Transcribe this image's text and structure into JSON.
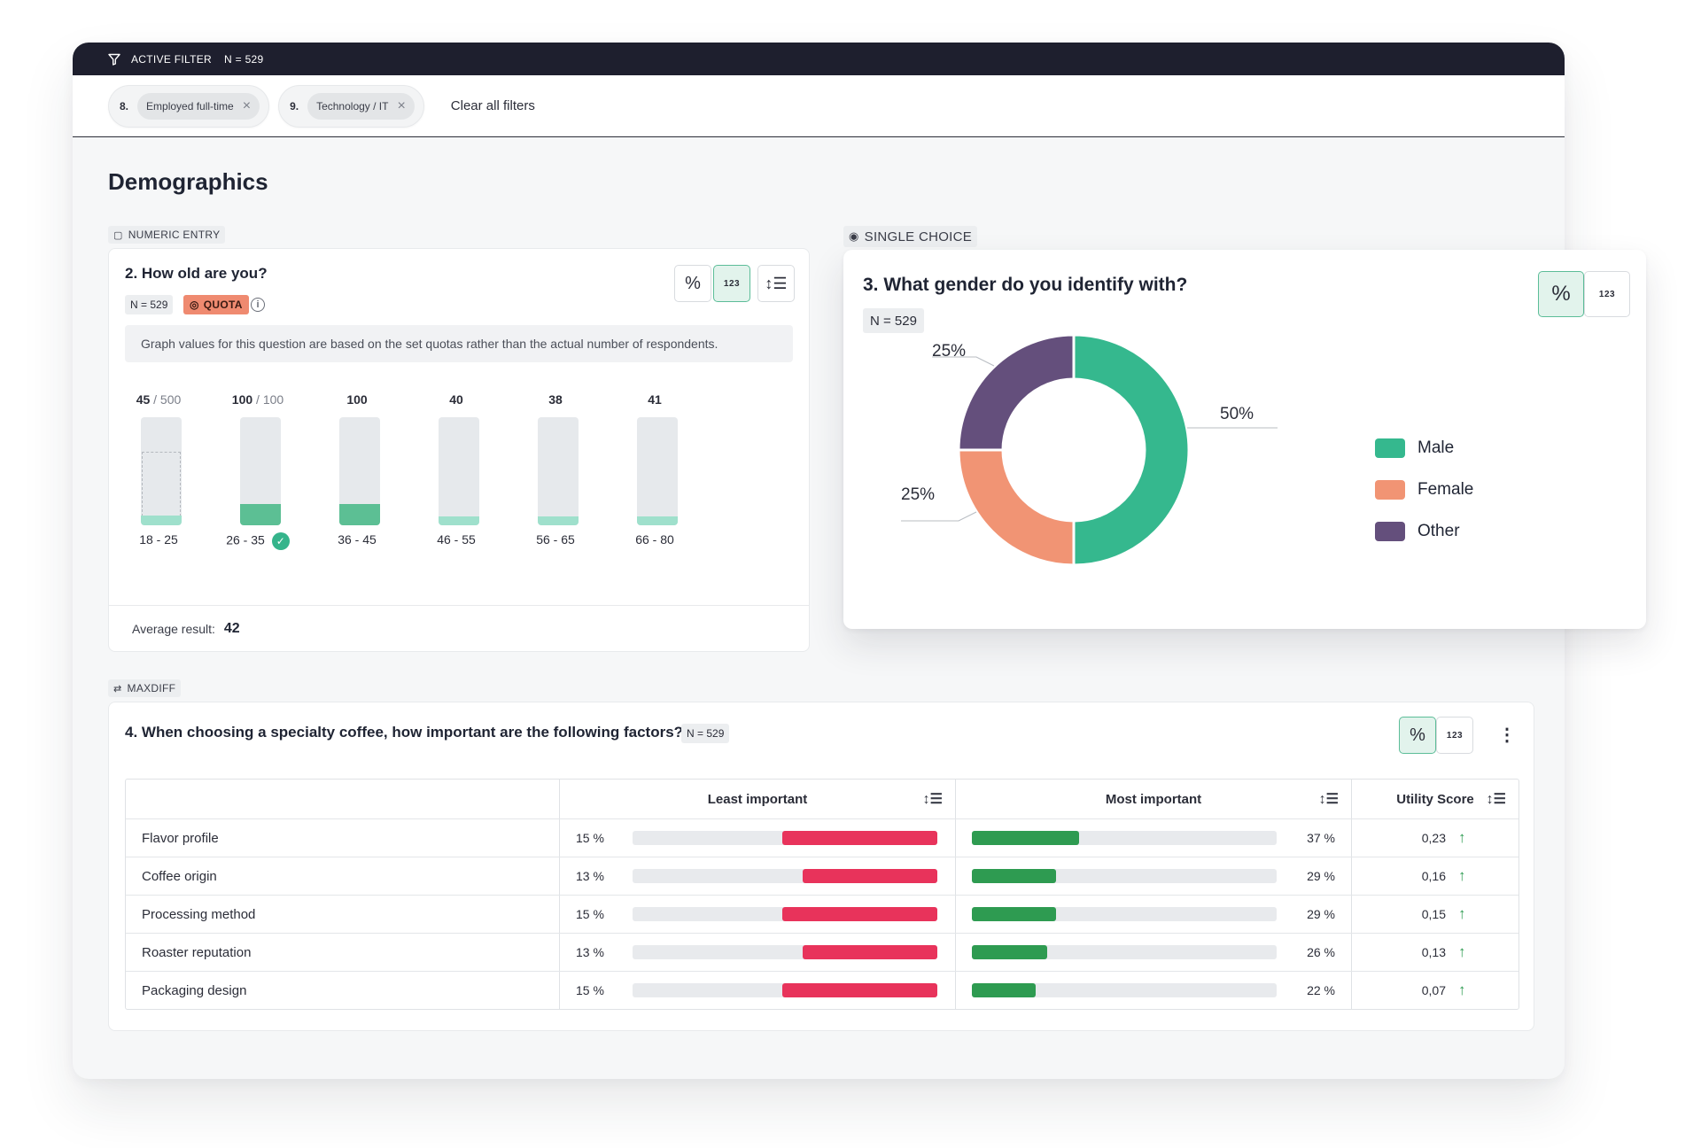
{
  "filter_bar": {
    "label": "ACTIVE FILTER",
    "n": "N = 529"
  },
  "filters": [
    {
      "num": "8.",
      "label": "Employed full-time"
    },
    {
      "num": "9.",
      "label": "Technology / IT"
    }
  ],
  "clear_all": "Clear all filters",
  "page_title": "Demographics",
  "q2": {
    "tag": "NUMERIC ENTRY",
    "title": "2. How old are you?",
    "n": "N = 529",
    "quota": "QUOTA",
    "notice": "Graph values for this question are based on the set quotas rather than the actual number of respondents.",
    "average_label": "Average result:",
    "average_value": "42",
    "bars": [
      {
        "value": "45",
        "den": "/ 500",
        "label": "18 - 25",
        "fill": 0.09,
        "dark": false,
        "quota_box": 0.68,
        "check": false
      },
      {
        "value": "100",
        "den": "/ 100",
        "label": "26 - 35",
        "fill": 0.2,
        "dark": true,
        "quota_box": null,
        "check": true
      },
      {
        "value": "100",
        "den": "",
        "label": "36 - 45",
        "fill": 0.2,
        "dark": true,
        "quota_box": null,
        "check": false
      },
      {
        "value": "40",
        "den": "",
        "label": "46 - 55",
        "fill": 0.08,
        "dark": false,
        "quota_box": null,
        "check": false
      },
      {
        "value": "38",
        "den": "",
        "label": "56 - 65",
        "fill": 0.08,
        "dark": false,
        "quota_box": null,
        "check": false
      },
      {
        "value": "41",
        "den": "",
        "label": "66 - 80",
        "fill": 0.08,
        "dark": false,
        "quota_box": null,
        "check": false
      }
    ]
  },
  "q3": {
    "tag": "SINGLE CHOICE",
    "title": "3. What gender do you identify with?",
    "n": "N = 529",
    "slices": [
      {
        "name": "Male",
        "value": 50,
        "label": "50%",
        "color": "#35b88e"
      },
      {
        "name": "Female",
        "value": 25,
        "label": "25%",
        "color": "#f19474"
      },
      {
        "name": "Other",
        "value": 25,
        "label": "25%",
        "color": "#644f7c"
      }
    ]
  },
  "q4": {
    "tag": "MAXDIFF",
    "title": "4. When choosing a specialty coffee, how important are the following factors?",
    "n": "N = 529",
    "headers": {
      "least": "Least important",
      "most": "Most important",
      "utility": "Utility Score"
    },
    "rows": [
      {
        "label": "Flavor profile",
        "least": "15 %",
        "least_v": 15,
        "most": "37 %",
        "most_v": 37,
        "utility": "0,23"
      },
      {
        "label": "Coffee origin",
        "least": "13 %",
        "least_v": 13,
        "most": "29 %",
        "most_v": 29,
        "utility": "0,16"
      },
      {
        "label": "Processing method",
        "least": "15 %",
        "least_v": 15,
        "most": "29 %",
        "most_v": 29,
        "utility": "0,15"
      },
      {
        "label": "Roaster reputation",
        "least": "13 %",
        "least_v": 13,
        "most": "26 %",
        "most_v": 26,
        "utility": "0,13"
      },
      {
        "label": "Packaging design",
        "least": "15 %",
        "least_v": 15,
        "most": "22 %",
        "most_v": 22,
        "utility": "0,07"
      }
    ]
  }
}
